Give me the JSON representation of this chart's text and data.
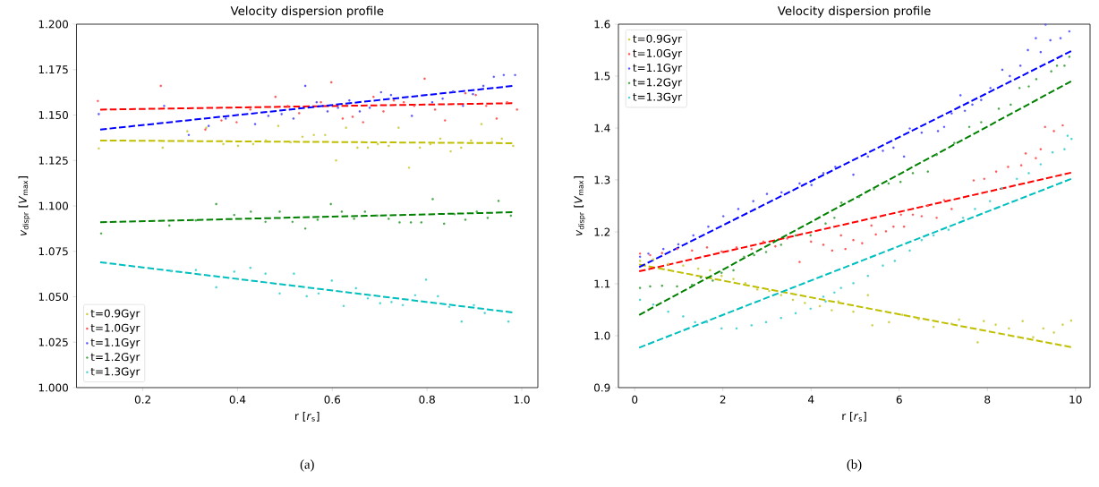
{
  "chart_data": [
    {
      "type": "scatter",
      "title": "Velocity dispersion profile",
      "xlabel": "r [*r*$_{s}$]",
      "ylabel": "*v*$_{dispr}$ [*V*$_{max}$]",
      "annotations": [
        "(a)"
      ],
      "legend": "bottom left",
      "marker": "circle",
      "grid": false,
      "xlim": [
        0.06,
        1.034
      ],
      "xticks": [
        0.2,
        0.4,
        0.6,
        0.8,
        {
          "value": 1.0,
          "label": "1.0"
        }
      ],
      "ylim": [
        1.0,
        1.2
      ],
      "yticks": [
        {
          "value": 1.0,
          "label": "1.000"
        },
        {
          "value": 1.025,
          "label": "1.025"
        },
        {
          "value": 1.05,
          "label": "1.050"
        },
        {
          "value": 1.075,
          "label": "1.075"
        },
        {
          "value": 1.1,
          "label": "1.100"
        },
        {
          "value": 1.125,
          "label": "1.125"
        },
        {
          "value": 1.15,
          "label": "1.150"
        },
        {
          "value": 1.175,
          "label": "1.175"
        },
        {
          "value": 1.2,
          "label": "1.200"
        }
      ],
      "series": [
        {
          "name": "t=0.9Gyr",
          "color": "#cfcf4a",
          "x": [
            0.107,
            0.242,
            0.294,
            0.334,
            0.37,
            0.401,
            0.433,
            0.46,
            0.486,
            0.512,
            0.537,
            0.561,
            0.585,
            0.608,
            0.629,
            0.653,
            0.675,
            0.696,
            0.719,
            0.74,
            0.762,
            0.785,
            0.807,
            0.828,
            0.85,
            0.872,
            0.893,
            0.915,
            0.937,
            0.958,
            0.982
          ],
          "values": [
            1.1316,
            1.132,
            1.141,
            1.143,
            1.134,
            1.133,
            1.134,
            1.136,
            1.144,
            1.135,
            1.138,
            1.139,
            1.139,
            1.125,
            1.143,
            1.132,
            1.132,
            1.134,
            1.133,
            1.143,
            1.121,
            1.132,
            1.134,
            1.137,
            1.13,
            1.132,
            1.136,
            1.145,
            1.135,
            1.137,
            1.133
          ]
        },
        {
          "name": "t=1.0Gyr",
          "color": "#ff5a5a",
          "x": [
            0.105,
            0.238,
            0.332,
            0.366,
            0.398,
            0.427,
            0.48,
            0.506,
            0.53,
            0.576,
            0.598,
            0.622,
            0.643,
            0.665,
            0.687,
            0.708,
            0.73,
            0.751,
            0.773,
            0.795,
            0.817,
            0.838,
            0.881,
            0.903,
            0.925,
            0.947,
            0.969,
            0.99
          ],
          "values": [
            1.1577,
            1.166,
            1.142,
            1.147,
            1.146,
            1.153,
            1.16,
            1.155,
            1.151,
            1.157,
            1.168,
            1.148,
            1.149,
            1.146,
            1.16,
            1.152,
            1.158,
            1.157,
            1.155,
            1.17,
            1.153,
            1.147,
            1.162,
            1.161,
            1.155,
            1.148,
            1.157,
            1.153
          ]
        },
        {
          "name": "t=1.1Gyr",
          "color": "#5a5aff",
          "x": [
            0.107,
            0.245,
            0.297,
            0.339,
            0.375,
            0.437,
            0.465,
            0.493,
            0.518,
            0.543,
            0.567,
            0.59,
            0.612,
            0.636,
            0.658,
            0.679,
            0.703,
            0.724,
            0.768,
            0.811,
            0.833,
            0.855,
            0.876,
            0.897,
            0.919,
            0.941,
            0.962,
            0.986
          ],
          "values": [
            1.1505,
            1.155,
            1.139,
            1.144,
            1.148,
            1.145,
            1.1495,
            1.1505,
            1.148,
            1.166,
            1.157,
            1.152,
            1.154,
            1.158,
            1.152,
            1.154,
            1.1625,
            1.161,
            1.1495,
            1.157,
            1.159,
            1.163,
            1.155,
            1.1615,
            1.166,
            1.171,
            1.172,
            1.172
          ]
        },
        {
          "name": "t=1.2Gyr",
          "color": "#4ca64c",
          "x": [
            0.112,
            0.256,
            0.312,
            0.355,
            0.393,
            0.428,
            0.459,
            0.489,
            0.516,
            0.543,
            0.569,
            0.597,
            0.62,
            0.646,
            0.669,
            0.695,
            0.719,
            0.742,
            0.766,
            0.788,
            0.812,
            0.836,
            0.858,
            0.881,
            0.905,
            0.928,
            0.951,
            0.977
          ],
          "values": [
            1.0848,
            1.0892,
            1.092,
            1.101,
            1.095,
            1.0968,
            1.0912,
            1.0968,
            1.0912,
            1.0875,
            1.0924,
            1.101,
            1.0968,
            1.0929,
            1.0968,
            1.0946,
            1.0929,
            1.0909,
            1.0909,
            1.0909,
            1.1037,
            1.0902,
            1.0954,
            1.0924,
            1.0968,
            1.0934,
            1.1027,
            1.0946
          ]
        },
        {
          "name": "t=1.3Gyr",
          "color": "#4cd4d4",
          "x": [
            0.26,
            0.312,
            0.355,
            0.393,
            0.427,
            0.459,
            0.489,
            0.519,
            0.546,
            0.571,
            0.599,
            0.624,
            0.65,
            0.675,
            0.701,
            0.725,
            0.749,
            0.775,
            0.798,
            0.823,
            0.847,
            0.873,
            0.899,
            0.922,
            0.972
          ],
          "values": [
            1.064,
            1.0647,
            1.0552,
            1.0638,
            1.0659,
            1.0627,
            1.0518,
            1.0627,
            1.0503,
            1.0518,
            1.0589,
            1.0449,
            1.0547,
            1.0491,
            1.0464,
            1.0471,
            1.0454,
            1.0508,
            1.0594,
            1.0503,
            1.0444,
            1.0363,
            1.0454,
            1.041,
            1.0363
          ]
        },
        {
          "type": "line",
          "line_style": "dashed",
          "marker": "none",
          "color": "#bfbf00",
          "x": [
            0.11,
            0.98
          ],
          "values": [
            1.136,
            1.1345
          ]
        },
        {
          "type": "line",
          "line_style": "dashed",
          "marker": "none",
          "color": "#ff0000",
          "x": [
            0.11,
            0.98
          ],
          "values": [
            1.153,
            1.1565
          ]
        },
        {
          "type": "line",
          "line_style": "dashed",
          "marker": "none",
          "color": "#0000ff",
          "x": [
            0.11,
            0.98
          ],
          "values": [
            1.142,
            1.166
          ]
        },
        {
          "type": "line",
          "line_style": "dashed",
          "marker": "none",
          "color": "#008000",
          "x": [
            0.11,
            0.98
          ],
          "values": [
            1.091,
            1.0965
          ]
        },
        {
          "type": "line",
          "line_style": "dashed",
          "marker": "none",
          "color": "#00bfbf",
          "x": [
            0.11,
            0.98
          ],
          "values": [
            1.069,
            1.0414
          ]
        }
      ]
    },
    {
      "type": "scatter",
      "title": "Velocity dispersion profile",
      "xlabel": "r [*r*$_{s}$]",
      "ylabel": "*v*$_{dispr}$ [*V*$_{max}$]",
      "annotations": [
        "(b)"
      ],
      "legend": "top left",
      "marker": "circle",
      "grid": false,
      "xlim": [
        -0.37,
        10.33
      ],
      "xticks": [
        0,
        2,
        4,
        6,
        8,
        10
      ],
      "ylim": [
        0.9,
        1.6
      ],
      "yticks": [
        0.9,
        {
          "value": 1.0,
          "label": "1.0"
        },
        1.1,
        1.2,
        1.3,
        1.4,
        1.5,
        1.6
      ],
      "series": [
        {
          "name": "t=0.9Gyr",
          "color": "#cfcf4a",
          "x": [
            0.12,
            0.42,
            0.76,
            1.1,
            1.44,
            1.71,
            1.97,
            2.24,
            2.51,
            2.78,
            3.05,
            3.32,
            3.59,
            3.86,
            4.2,
            4.47,
            4.62,
            4.96,
            5.29,
            5.39,
            5.77,
            6.07,
            6.44,
            6.78,
            7.19,
            7.36,
            7.78,
            7.92,
            8.19,
            8.49,
            8.8,
            9.04,
            9.27,
            9.51,
            9.71,
            9.9
          ],
          "values": [
            1.144,
            1.147,
            1.138,
            1.135,
            1.129,
            1.126,
            1.115,
            1.109,
            1.101,
            1.089,
            1.086,
            1.078,
            1.069,
            1.063,
            1.057,
            1.049,
            1.066,
            1.046,
            1.078,
            1.02,
            1.026,
            1.04,
            1.032,
            1.017,
            1.023,
            1.031,
            0.987,
            1.028,
            1.021,
            1.014,
            1.028,
            0.997,
            1.014,
            1.006,
            1.021,
            1.029
          ]
        },
        {
          "name": "t=1.0Gyr",
          "color": "#ff5a5a",
          "x": [
            0.12,
            0.35,
            0.62,
            0.96,
            1.3,
            1.64,
            1.97,
            2.31,
            2.65,
            2.92,
            3.19,
            3.46,
            3.74,
            4.0,
            4.28,
            4.48,
            4.68,
            4.78,
            4.96,
            5.16,
            5.37,
            5.47,
            5.7,
            5.87,
            6.04,
            6.11,
            6.31,
            6.51,
            6.65,
            6.85,
            7.02,
            7.19,
            7.69,
            7.93,
            8.2,
            8.47,
            8.77,
            8.87,
            9.1,
            9.21,
            9.31,
            9.51,
            9.71
          ],
          "values": [
            1.158,
            1.155,
            1.159,
            1.167,
            1.164,
            1.17,
            1.162,
            1.17,
            1.167,
            1.181,
            1.172,
            1.187,
            1.142,
            1.181,
            1.175,
            1.164,
            1.193,
            1.167,
            1.184,
            1.178,
            1.212,
            1.195,
            1.201,
            1.21,
            1.233,
            1.21,
            1.233,
            1.23,
            1.25,
            1.227,
            1.261,
            1.244,
            1.299,
            1.302,
            1.316,
            1.325,
            1.328,
            1.351,
            1.342,
            1.359,
            1.402,
            1.394,
            1.405
          ]
        },
        {
          "name": "t=1.1Gyr",
          "color": "#5a5aff",
          "x": [
            0.12,
            0.31,
            0.65,
            0.99,
            1.33,
            1.67,
            2.01,
            2.35,
            2.69,
            3.0,
            3.33,
            3.74,
            4.01,
            4.28,
            4.55,
            4.96,
            5.29,
            5.63,
            5.87,
            6.11,
            6.24,
            6.51,
            6.88,
            7.02,
            7.19,
            7.39,
            7.49,
            7.66,
            7.86,
            8.07,
            8.34,
            8.51,
            8.75,
            8.92,
            9.1,
            9.21,
            9.32,
            9.43,
            9.66,
            9.86
          ],
          "values": [
            1.152,
            1.158,
            1.167,
            1.176,
            1.193,
            1.21,
            1.23,
            1.244,
            1.259,
            1.273,
            1.276,
            1.293,
            1.29,
            1.313,
            1.325,
            1.31,
            1.345,
            1.356,
            1.362,
            1.345,
            1.399,
            1.391,
            1.394,
            1.402,
            1.428,
            1.463,
            1.433,
            1.445,
            1.454,
            1.477,
            1.512,
            1.5,
            1.52,
            1.55,
            1.573,
            1.546,
            1.599,
            1.569,
            1.573,
            1.586
          ]
        },
        {
          "name": "t=1.2Gyr",
          "color": "#4ca64c",
          "x": [
            0.12,
            0.35,
            0.62,
            0.96,
            1.3,
            1.5,
            1.77,
            1.97,
            2.24,
            2.48,
            2.71,
            2.98,
            3.32,
            3.65,
            3.99,
            4.33,
            4.53,
            4.69,
            5.09,
            5.43,
            5.76,
            6.03,
            6.31,
            6.65,
            6.85,
            7.25,
            7.59,
            7.86,
            8.26,
            8.53,
            8.73,
            8.94,
            9.11,
            9.45,
            9.58,
            9.75,
            9.86
          ],
          "values": [
            1.092,
            1.095,
            1.096,
            1.095,
            1.098,
            1.112,
            1.106,
            1.121,
            1.126,
            1.152,
            1.155,
            1.161,
            1.175,
            1.193,
            1.193,
            1.216,
            1.227,
            1.256,
            1.267,
            1.282,
            1.293,
            1.296,
            1.313,
            1.316,
            1.348,
            1.371,
            1.402,
            1.411,
            1.437,
            1.445,
            1.477,
            1.48,
            1.494,
            1.509,
            1.52,
            1.52,
            1.537
          ]
        },
        {
          "name": "t=1.3Gyr",
          "color": "#4cd4d4",
          "x": [
            0.12,
            0.42,
            0.76,
            1.1,
            1.37,
            1.64,
            1.97,
            2.31,
            2.65,
            2.98,
            3.32,
            3.65,
            3.99,
            4.28,
            4.33,
            4.53,
            4.68,
            4.96,
            5.29,
            5.63,
            5.9,
            6.24,
            6.51,
            6.78,
            7.12,
            7.45,
            7.72,
            8.06,
            8.33,
            8.67,
            8.94,
            9.21,
            9.48,
            9.75,
            9.82,
            9.91
          ],
          "values": [
            1.069,
            1.06,
            1.046,
            1.037,
            1.026,
            1.026,
            1.014,
            1.014,
            1.02,
            1.026,
            1.034,
            1.043,
            1.052,
            1.075,
            1.066,
            1.083,
            1.092,
            1.101,
            1.115,
            1.135,
            1.144,
            1.164,
            1.184,
            1.193,
            1.204,
            1.227,
            1.244,
            1.259,
            1.284,
            1.302,
            1.313,
            1.33,
            1.353,
            1.359,
            1.385,
            1.379
          ]
        },
        {
          "type": "line",
          "line_style": "dashed",
          "marker": "none",
          "color": "#bfbf00",
          "x": [
            0.1,
            9.9
          ],
          "values": [
            1.137,
            0.978
          ]
        },
        {
          "type": "line",
          "line_style": "dashed",
          "marker": "none",
          "color": "#ff0000",
          "x": [
            0.1,
            9.9
          ],
          "values": [
            1.124,
            1.314
          ]
        },
        {
          "type": "line",
          "line_style": "dashed",
          "marker": "none",
          "color": "#0000ff",
          "x": [
            0.1,
            9.9
          ],
          "values": [
            1.132,
            1.548
          ]
        },
        {
          "type": "line",
          "line_style": "dashed",
          "marker": "none",
          "color": "#008000",
          "x": [
            0.1,
            9.9
          ],
          "values": [
            1.04,
            1.49
          ]
        },
        {
          "type": "line",
          "line_style": "dashed",
          "marker": "none",
          "color": "#00bfbf",
          "x": [
            0.1,
            9.9
          ],
          "values": [
            0.977,
            1.302
          ]
        }
      ]
    }
  ]
}
